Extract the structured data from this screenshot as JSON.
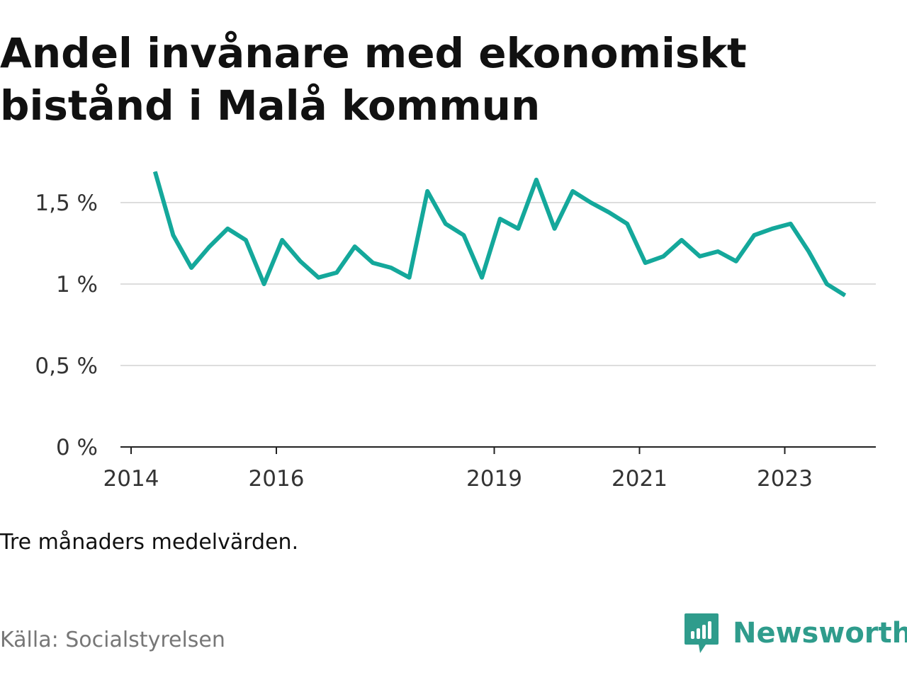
{
  "title": "Andel invånare med ekonomiskt bistånd i Malå kommun",
  "note": "Tre månaders medelvärden.",
  "source": "Källa: Socialstyrelsen",
  "brand": {
    "name": "Newsworthy",
    "icon": "newsworthy-logo-icon",
    "color": "#2f9c8c"
  },
  "chart_data": {
    "type": "line",
    "title": "Andel invånare med ekonomiskt bistånd i Malå kommun",
    "xlabel": "",
    "ylabel": "",
    "ylim": [
      0,
      1.7
    ],
    "y_ticks": [
      {
        "value": 0,
        "label": "0 %"
      },
      {
        "value": 0.5,
        "label": "0,5 %"
      },
      {
        "value": 1,
        "label": "1 %"
      },
      {
        "value": 1.5,
        "label": "1,5 %"
      }
    ],
    "xlim": [
      2014,
      2024.4
    ],
    "x_ticks": [
      {
        "value": 2014,
        "label": "2014"
      },
      {
        "value": 2016,
        "label": "2016"
      },
      {
        "value": 2019,
        "label": "2019"
      },
      {
        "value": 2021,
        "label": "2021"
      },
      {
        "value": 2023,
        "label": "2023"
      }
    ],
    "grid": true,
    "line_color": "#14a89b",
    "series": [
      {
        "name": "",
        "x": [
          2014.33,
          2014.58,
          2014.83,
          2015.08,
          2015.33,
          2015.58,
          2015.83,
          2016.08,
          2016.33,
          2016.58,
          2016.83,
          2017.08,
          2017.33,
          2017.58,
          2017.83,
          2018.08,
          2018.33,
          2018.58,
          2018.83,
          2019.08,
          2019.33,
          2019.58,
          2019.83,
          2020.08,
          2020.33,
          2020.58,
          2020.83,
          2021.08,
          2021.33,
          2021.58,
          2021.83,
          2022.08,
          2022.33,
          2022.58,
          2022.83,
          2023.08,
          2023.33,
          2023.58,
          2023.83
        ],
        "values": [
          1.69,
          1.3,
          1.1,
          1.23,
          1.34,
          1.27,
          1.0,
          1.27,
          1.14,
          1.04,
          1.07,
          1.23,
          1.13,
          1.1,
          1.04,
          1.57,
          1.37,
          1.3,
          1.04,
          1.4,
          1.34,
          1.64,
          1.34,
          1.57,
          1.5,
          1.44,
          1.37,
          1.13,
          1.17,
          1.27,
          1.17,
          1.2,
          1.14,
          1.3,
          1.34,
          1.37,
          1.2,
          1.0,
          0.93
        ]
      }
    ]
  }
}
